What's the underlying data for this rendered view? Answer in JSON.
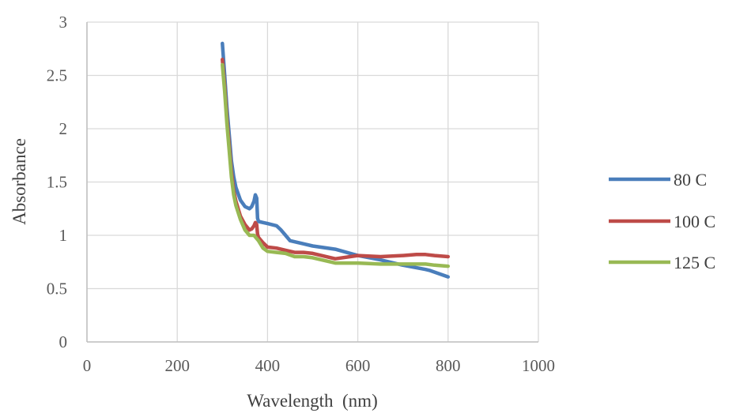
{
  "chart_data": {
    "type": "line",
    "title": "",
    "xlabel": "Wavelength  (nm)",
    "ylabel": "Absorbance",
    "xlim": [
      0,
      1000
    ],
    "ylim": [
      0,
      3
    ],
    "x_ticks": [
      "0",
      "200",
      "400",
      "600",
      "800",
      "1000"
    ],
    "y_ticks": [
      "0",
      "0.5",
      "1",
      "1.5",
      "2",
      "2.5",
      "3"
    ],
    "grid": true,
    "legend_position": "right",
    "series": [
      {
        "name": "80 C",
        "color": "#4A7EBB",
        "x": [
          300,
          305,
          310,
          315,
          320,
          325,
          330,
          340,
          350,
          360,
          365,
          370,
          373,
          376,
          378,
          380,
          390,
          400,
          420,
          430,
          440,
          450,
          480,
          500,
          550,
          600,
          650,
          700,
          750,
          760,
          780,
          800
        ],
        "y": [
          2.8,
          2.5,
          2.2,
          1.95,
          1.7,
          1.55,
          1.45,
          1.33,
          1.27,
          1.25,
          1.27,
          1.32,
          1.38,
          1.35,
          1.16,
          1.13,
          1.12,
          1.11,
          1.09,
          1.05,
          1.0,
          0.95,
          0.92,
          0.9,
          0.87,
          0.81,
          0.77,
          0.72,
          0.68,
          0.67,
          0.64,
          0.61
        ]
      },
      {
        "name": "100 C",
        "color": "#BE4B48",
        "x": [
          300,
          305,
          310,
          315,
          320,
          325,
          330,
          340,
          350,
          360,
          365,
          370,
          373,
          376,
          378,
          380,
          390,
          400,
          420,
          440,
          460,
          480,
          500,
          550,
          600,
          650,
          700,
          730,
          750,
          770,
          800
        ],
        "y": [
          2.65,
          2.4,
          2.1,
          1.85,
          1.6,
          1.42,
          1.32,
          1.18,
          1.1,
          1.05,
          1.06,
          1.09,
          1.12,
          1.1,
          1.01,
          0.98,
          0.93,
          0.89,
          0.88,
          0.86,
          0.84,
          0.84,
          0.83,
          0.78,
          0.81,
          0.8,
          0.81,
          0.82,
          0.82,
          0.81,
          0.8
        ]
      },
      {
        "name": "125 C",
        "color": "#98B954",
        "x": [
          300,
          305,
          310,
          315,
          320,
          325,
          330,
          340,
          350,
          360,
          370,
          380,
          390,
          400,
          420,
          440,
          460,
          480,
          500,
          550,
          600,
          650,
          700,
          750,
          770,
          800
        ],
        "y": [
          2.6,
          2.35,
          2.05,
          1.8,
          1.55,
          1.38,
          1.28,
          1.15,
          1.05,
          1.0,
          1.0,
          0.95,
          0.88,
          0.85,
          0.84,
          0.83,
          0.8,
          0.8,
          0.79,
          0.74,
          0.74,
          0.73,
          0.73,
          0.73,
          0.72,
          0.71
        ]
      }
    ]
  }
}
